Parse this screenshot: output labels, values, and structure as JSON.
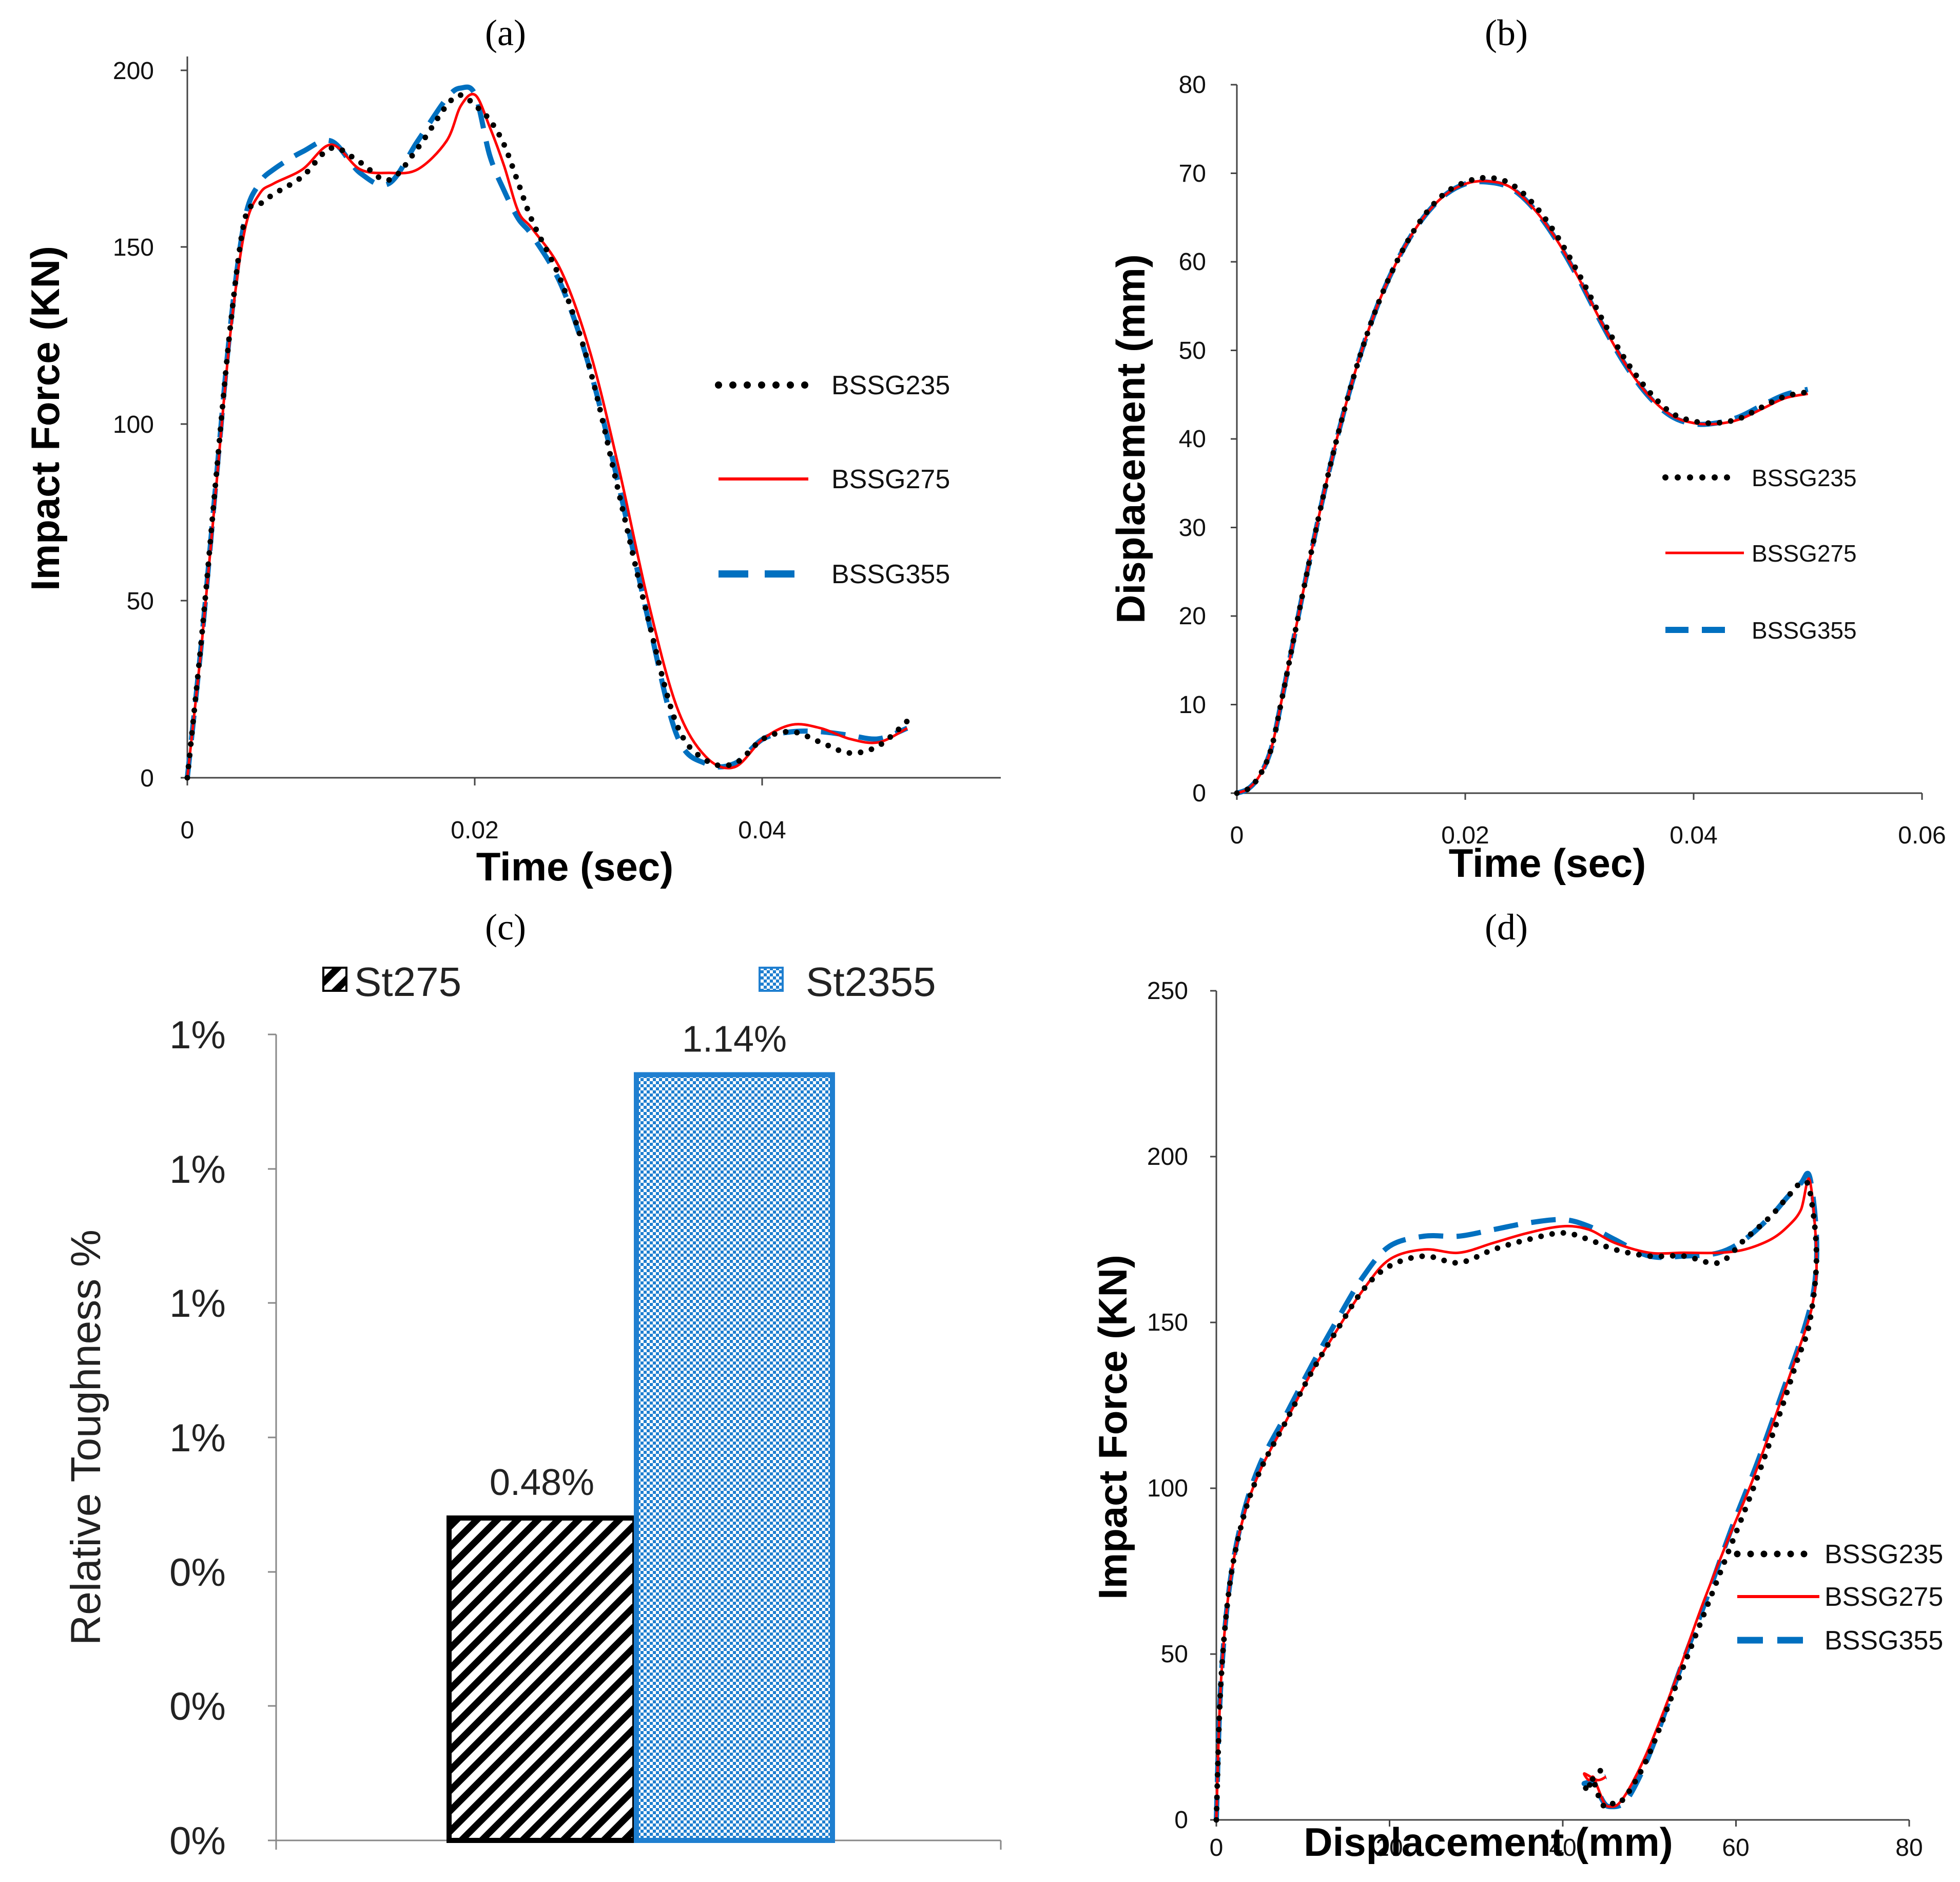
{
  "colors": {
    "BSSG235": "#000000",
    "BSSG275": "#ff0000",
    "BSSG355": "#0070c0",
    "St275_fill": "#000000",
    "St2355_fill": "#1f7fd0"
  },
  "chart_data": [
    {
      "panel": "(a)",
      "type": "line",
      "xlabel": "Time (sec)",
      "ylabel": "Impact Force (KN)",
      "xlim": [
        0,
        0.0565
      ],
      "ylim": [
        0,
        200
      ],
      "xticks": [
        "0",
        "0.02",
        "0.04"
      ],
      "yticks": [
        "0",
        "50",
        "100",
        "150",
        "200"
      ],
      "legend": [
        "BSSG235",
        "BSSG275",
        "BSSG355"
      ],
      "series": [
        {
          "name": "BSSG235",
          "x": [
            0,
            0.001,
            0.002,
            0.003,
            0.004,
            0.005,
            0.006,
            0.008,
            0.01,
            0.012,
            0.014,
            0.016,
            0.018,
            0.019,
            0.02,
            0.021,
            0.022,
            0.023,
            0.024,
            0.026,
            0.028,
            0.03,
            0.032,
            0.034,
            0.036,
            0.038,
            0.04,
            0.042,
            0.044,
            0.046,
            0.048,
            0.05
          ],
          "y": [
            0,
            40,
            85,
            128,
            158,
            162,
            165,
            170,
            178,
            174,
            169,
            178,
            190,
            193,
            190,
            186,
            179,
            168,
            157,
            140,
            115,
            80,
            45,
            15,
            5,
            4,
            11,
            13,
            10,
            7,
            9,
            16
          ]
        },
        {
          "name": "BSSG275",
          "x": [
            0,
            0.001,
            0.002,
            0.003,
            0.004,
            0.005,
            0.006,
            0.008,
            0.01,
            0.012,
            0.014,
            0.016,
            0.018,
            0.019,
            0.02,
            0.021,
            0.022,
            0.023,
            0.024,
            0.026,
            0.028,
            0.03,
            0.032,
            0.034,
            0.036,
            0.038,
            0.04,
            0.042,
            0.044,
            0.046,
            0.048,
            0.05
          ],
          "y": [
            0,
            38,
            82,
            126,
            155,
            165,
            168,
            172,
            179,
            172,
            171,
            172,
            180,
            190,
            193,
            184,
            173,
            160,
            155,
            143,
            120,
            87,
            50,
            20,
            6,
            3,
            11,
            15,
            14,
            11,
            10,
            14
          ]
        },
        {
          "name": "BSSG355",
          "x": [
            0,
            0.001,
            0.002,
            0.003,
            0.004,
            0.005,
            0.006,
            0.008,
            0.01,
            0.012,
            0.014,
            0.016,
            0.018,
            0.019,
            0.02,
            0.021,
            0.022,
            0.023,
            0.024,
            0.026,
            0.028,
            0.03,
            0.032,
            0.034,
            0.036,
            0.038,
            0.04,
            0.042,
            0.044,
            0.046,
            0.048,
            0.05
          ],
          "y": [
            0,
            39,
            84,
            128,
            158,
            168,
            172,
            177,
            180,
            171,
            168,
            180,
            192,
            195,
            193,
            176,
            166,
            158,
            153,
            139,
            115,
            82,
            45,
            12,
            4,
            4,
            11,
            13,
            13,
            12,
            11,
            14
          ]
        }
      ]
    },
    {
      "panel": "(b)",
      "type": "line",
      "xlabel": "Time (sec)",
      "ylabel": "Displacement (mm)",
      "xlim": [
        0,
        0.06
      ],
      "ylim": [
        0,
        80
      ],
      "xticks": [
        "0",
        "0.02",
        "0.04",
        "0.06"
      ],
      "yticks": [
        "0",
        "10",
        "20",
        "30",
        "40",
        "50",
        "60",
        "70",
        "80"
      ],
      "legend": [
        "BSSG235",
        "BSSG275",
        "BSSG355"
      ],
      "series": [
        {
          "name": "BSSG235",
          "x": [
            0,
            0.001,
            0.002,
            0.003,
            0.004,
            0.006,
            0.008,
            0.01,
            0.012,
            0.014,
            0.016,
            0.018,
            0.02,
            0.022,
            0.024,
            0.026,
            0.028,
            0.03,
            0.032,
            0.034,
            0.036,
            0.038,
            0.04,
            0.042,
            0.044,
            0.046,
            0.048,
            0.05
          ],
          "y": [
            0,
            0.5,
            2,
            5,
            11,
            24,
            36,
            46,
            54,
            60,
            64.5,
            67.5,
            69,
            69.5,
            68.8,
            66.5,
            63,
            58.5,
            53.5,
            49,
            45.5,
            43,
            42,
            41.8,
            42.3,
            43.6,
            44.8,
            45.3
          ]
        },
        {
          "name": "BSSG275",
          "x": [
            0,
            0.001,
            0.002,
            0.003,
            0.004,
            0.006,
            0.008,
            0.01,
            0.012,
            0.014,
            0.016,
            0.018,
            0.02,
            0.022,
            0.024,
            0.026,
            0.028,
            0.03,
            0.032,
            0.034,
            0.036,
            0.038,
            0.04,
            0.042,
            0.044,
            0.046,
            0.048,
            0.05
          ],
          "y": [
            0,
            0.5,
            2,
            5,
            11,
            24,
            36,
            46,
            54,
            60,
            64.4,
            67.3,
            68.8,
            69.1,
            68.4,
            66,
            62.5,
            58,
            53,
            48.5,
            45,
            42.7,
            41.8,
            41.7,
            42.2,
            43.4,
            44.6,
            45.1
          ]
        },
        {
          "name": "BSSG355",
          "x": [
            0,
            0.001,
            0.002,
            0.003,
            0.004,
            0.006,
            0.008,
            0.01,
            0.012,
            0.014,
            0.016,
            0.018,
            0.02,
            0.022,
            0.024,
            0.026,
            0.028,
            0.03,
            0.032,
            0.034,
            0.036,
            0.038,
            0.04,
            0.042,
            0.044,
            0.046,
            0.048,
            0.05
          ],
          "y": [
            0,
            0.5,
            2,
            5,
            11,
            24,
            36,
            46,
            54,
            60,
            64.4,
            67.3,
            68.8,
            69,
            68.3,
            66,
            62.4,
            57.9,
            52.9,
            48.4,
            44.9,
            42.6,
            41.7,
            41.8,
            42.5,
            43.8,
            45,
            45.6
          ]
        }
      ]
    },
    {
      "panel": "(c)",
      "type": "bar",
      "ylabel": "Relative Toughness %",
      "categories": [
        "St275",
        "St2355"
      ],
      "values": [
        0.48,
        1.14
      ],
      "data_labels": [
        "0.48%",
        "1.14%"
      ],
      "ylim": [
        0,
        1.2
      ],
      "yticks": [
        "0%",
        "0%",
        "0%",
        "1%",
        "1%",
        "1%",
        "1%"
      ],
      "legend": [
        "St275",
        "St2355"
      ]
    },
    {
      "panel": "(d)",
      "type": "line",
      "xlabel": "Displacement (mm)",
      "ylabel": "Impact Force (KN)",
      "xlim": [
        0,
        80
      ],
      "ylim": [
        0,
        250
      ],
      "xticks": [
        "0",
        "20",
        "40",
        "60",
        "80"
      ],
      "yticks": [
        "0",
        "50",
        "100",
        "150",
        "200",
        "250"
      ],
      "legend": [
        "BSSG235",
        "BSSG275",
        "BSSG355"
      ],
      "series": [
        {
          "name": "BSSG235",
          "x": [
            0,
            0.5,
            1.5,
            3,
            5,
            8,
            11,
            14,
            17,
            20,
            24,
            28,
            32,
            36,
            40,
            43,
            46,
            50,
            54,
            58,
            61,
            64,
            66,
            67.5,
            68.5,
            69.3,
            68.5,
            67,
            65,
            62,
            59,
            56,
            53,
            50,
            48,
            46.5,
            45.5,
            44.8,
            44,
            43.5,
            43,
            42.5,
            44,
            45
          ],
          "y": [
            0,
            40,
            70,
            90,
            105,
            120,
            135,
            148,
            160,
            167,
            170,
            168,
            172,
            175,
            177,
            175,
            172,
            170,
            170,
            168,
            175,
            182,
            188,
            192,
            190,
            170,
            150,
            138,
            122,
            100,
            80,
            60,
            40,
            20,
            10,
            5,
            5,
            4,
            8,
            12,
            10,
            9,
            14,
            16
          ]
        },
        {
          "name": "BSSG275",
          "x": [
            0,
            0.5,
            1.5,
            3,
            5,
            8,
            11,
            14,
            17,
            20,
            24,
            28,
            32,
            36,
            40,
            43,
            46,
            50,
            54,
            58,
            61,
            64,
            66,
            67.5,
            68.5,
            69.3,
            68.8,
            67,
            65,
            62,
            59,
            56,
            53,
            50,
            48,
            46.5,
            45.5,
            44.8,
            44,
            43.5,
            43,
            42.5,
            44,
            45
          ],
          "y": [
            0,
            40,
            70,
            90,
            105,
            120,
            135,
            148,
            160,
            169,
            172,
            171,
            174,
            177,
            179,
            178,
            174,
            171,
            171,
            171,
            172,
            175,
            179,
            184,
            193,
            170,
            155,
            140,
            125,
            103,
            84,
            64,
            42,
            22,
            11,
            5,
            4,
            5,
            10,
            13,
            12,
            14,
            12,
            13
          ]
        },
        {
          "name": "BSSG355",
          "x": [
            0,
            0.5,
            1.5,
            3,
            5,
            8,
            11,
            14,
            17,
            20,
            24,
            28,
            32,
            36,
            40,
            43,
            46,
            50,
            54,
            58,
            61,
            64,
            66,
            67.5,
            68.5,
            69.3,
            69,
            67.5,
            65.5,
            62.5,
            59.5,
            56.5,
            53.5,
            50.5,
            48.5,
            47,
            45.5,
            44.8,
            44,
            43.5,
            43,
            42.5,
            44,
            45
          ],
          "y": [
            0,
            40,
            70,
            91,
            107,
            122,
            137,
            151,
            164,
            173,
            176,
            176,
            178,
            180,
            181,
            179,
            175,
            170,
            170,
            171,
            175,
            182,
            188,
            192,
            194,
            176,
            160,
            145,
            130,
            108,
            88,
            66,
            45,
            23,
            11,
            5,
            4,
            5,
            9,
            12,
            11,
            11,
            12,
            13
          ]
        }
      ]
    }
  ]
}
